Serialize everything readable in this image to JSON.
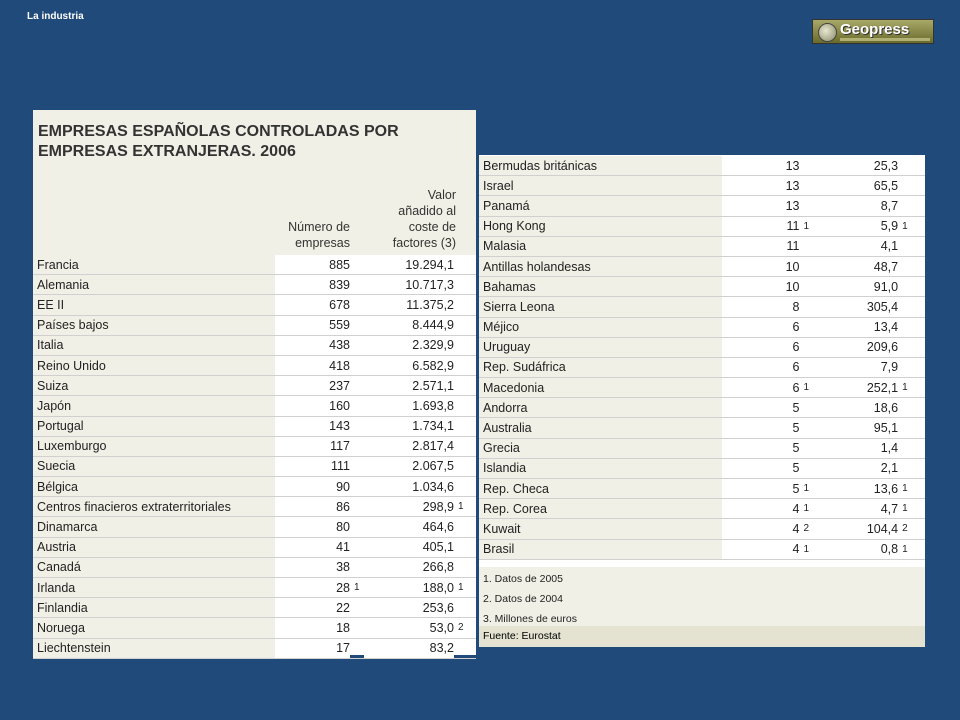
{
  "top_label": "La industria",
  "logo": {
    "name": "Geopress"
  },
  "table": {
    "title_line1": "EMPRESAS ESPAÑOLAS CONTROLADAS POR",
    "title_line2": "EMPRESAS EXTRANJERAS. 2006",
    "col_number": [
      "Número de",
      "empresas"
    ],
    "col_value": [
      "Valor",
      "añadido al",
      "coste de",
      "factores (3)"
    ],
    "left_rows": [
      {
        "country": "Francia",
        "num": "885",
        "n1": "",
        "val": "19.294,1",
        "n2": ""
      },
      {
        "country": "Alemania",
        "num": "839",
        "n1": "",
        "val": "10.717,3",
        "n2": ""
      },
      {
        "country": "EE II",
        "num": "678",
        "n1": "",
        "val": "11.375,2",
        "n2": ""
      },
      {
        "country": "Países bajos",
        "num": "559",
        "n1": "",
        "val": "8.444,9",
        "n2": ""
      },
      {
        "country": "Italia",
        "num": "438",
        "n1": "",
        "val": "2.329,9",
        "n2": ""
      },
      {
        "country": "Reino Unido",
        "num": "418",
        "n1": "",
        "val": "6.582,9",
        "n2": ""
      },
      {
        "country": "Suiza",
        "num": "237",
        "n1": "",
        "val": "2.571,1",
        "n2": ""
      },
      {
        "country": "Japón",
        "num": "160",
        "n1": "",
        "val": "1.693,8",
        "n2": ""
      },
      {
        "country": "Portugal",
        "num": "143",
        "n1": "",
        "val": "1.734,1",
        "n2": ""
      },
      {
        "country": "Luxemburgo",
        "num": "117",
        "n1": "",
        "val": "2.817,4",
        "n2": ""
      },
      {
        "country": "Suecia",
        "num": "111",
        "n1": "",
        "val": "2.067,5",
        "n2": ""
      },
      {
        "country": "Bélgica",
        "num": "90",
        "n1": "",
        "val": "1.034,6",
        "n2": ""
      },
      {
        "country": "Centros finacieros extraterritoriales",
        "num": "86",
        "n1": "",
        "val": "298,9",
        "n2": "1"
      },
      {
        "country": "Dinamarca",
        "num": "80",
        "n1": "",
        "val": "464,6",
        "n2": ""
      },
      {
        "country": "Austria",
        "num": "41",
        "n1": "",
        "val": "405,1",
        "n2": ""
      },
      {
        "country": "Canadá",
        "num": "38",
        "n1": "",
        "val": "266,8",
        "n2": ""
      },
      {
        "country": "Irlanda",
        "num": "28",
        "n1": "1",
        "val": "188,0",
        "n2": "1"
      },
      {
        "country": "Finlandia",
        "num": "22",
        "n1": "",
        "val": "253,6",
        "n2": ""
      },
      {
        "country": "Noruega",
        "num": "18",
        "n1": "",
        "val": "53,0",
        "n2": "2"
      },
      {
        "country": "Liechtenstein",
        "num": "17",
        "n1": "",
        "val": "83,2",
        "n2": ""
      }
    ],
    "right_rows": [
      {
        "country": "Bermudas británicas",
        "num": "13",
        "n1": "",
        "val": "25,3",
        "n2": ""
      },
      {
        "country": "Israel",
        "num": "13",
        "n1": "",
        "val": "65,5",
        "n2": ""
      },
      {
        "country": "Panamá",
        "num": "13",
        "n1": "",
        "val": "8,7",
        "n2": ""
      },
      {
        "country": "Hong Kong",
        "num": "11",
        "n1": "1",
        "val": "5,9",
        "n2": "1"
      },
      {
        "country": "Malasia",
        "num": "11",
        "n1": "",
        "val": "4,1",
        "n2": ""
      },
      {
        "country": "Antillas holandesas",
        "num": "10",
        "n1": "",
        "val": "48,7",
        "n2": ""
      },
      {
        "country": "Bahamas",
        "num": "10",
        "n1": "",
        "val": "91,0",
        "n2": ""
      },
      {
        "country": "Sierra Leona",
        "num": "8",
        "n1": "",
        "val": "305,4",
        "n2": ""
      },
      {
        "country": "Méjico",
        "num": "6",
        "n1": "",
        "val": "13,4",
        "n2": ""
      },
      {
        "country": "Uruguay",
        "num": "6",
        "n1": "",
        "val": "209,6",
        "n2": ""
      },
      {
        "country": "Rep. Sudáfrica",
        "num": "6",
        "n1": "",
        "val": "7,9",
        "n2": ""
      },
      {
        "country": "Macedonia",
        "num": "6",
        "n1": "1",
        "val": "252,1",
        "n2": "1"
      },
      {
        "country": "Andorra",
        "num": "5",
        "n1": "",
        "val": "18,6",
        "n2": ""
      },
      {
        "country": "Australia",
        "num": "5",
        "n1": "",
        "val": "95,1",
        "n2": ""
      },
      {
        "country": "Grecia",
        "num": "5",
        "n1": "",
        "val": "1,4",
        "n2": ""
      },
      {
        "country": "Islandia",
        "num": "5",
        "n1": "",
        "val": "2,1",
        "n2": ""
      },
      {
        "country": "Rep. Checa",
        "num": "5",
        "n1": "1",
        "val": "13,6",
        "n2": "1"
      },
      {
        "country": "Rep. Corea",
        "num": "4",
        "n1": "1",
        "val": "4,7",
        "n2": "1"
      },
      {
        "country": "Kuwait",
        "num": "4",
        "n1": "2",
        "val": "104,4",
        "n2": "2"
      },
      {
        "country": "Brasil",
        "num": "4",
        "n1": "1",
        "val": "0,8",
        "n2": "1"
      }
    ],
    "footnotes": [
      "1. Datos de 2005",
      "2. Datos de 2004",
      "3. Millones de euros"
    ],
    "source": "Fuente: Eurostat"
  }
}
